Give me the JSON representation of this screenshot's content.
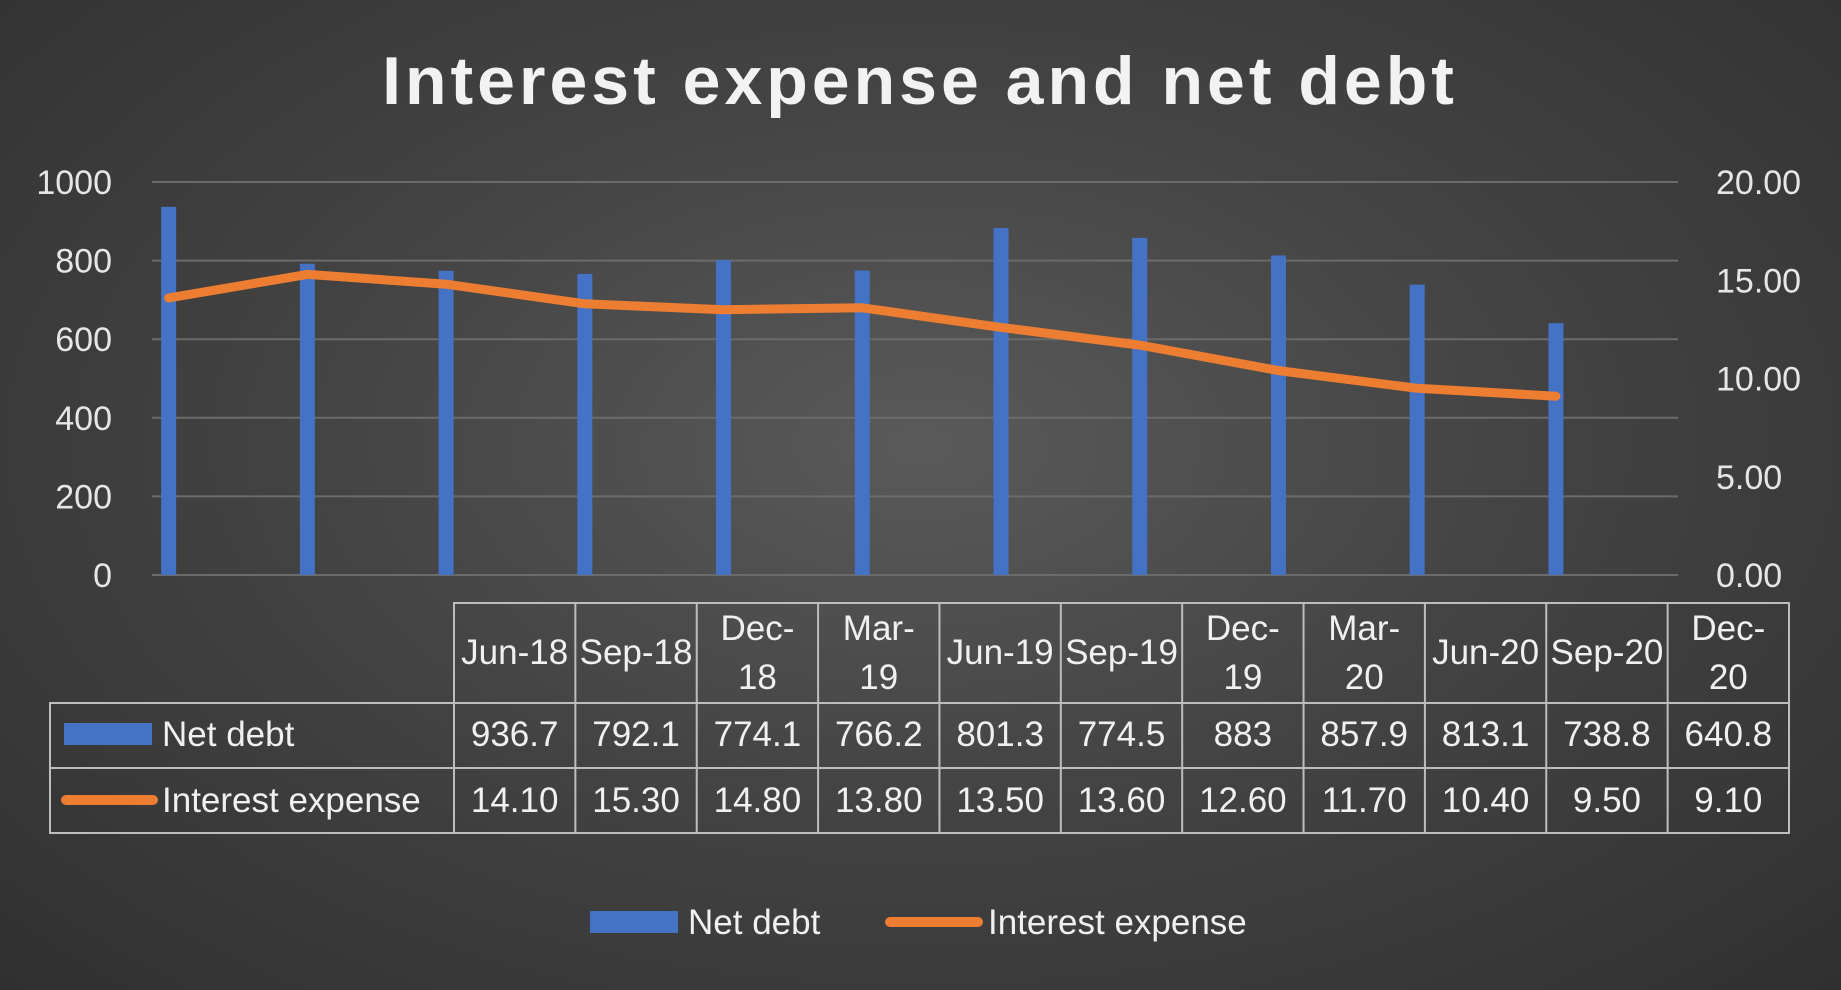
{
  "chart_data": {
    "type": "bar",
    "title": "Interest expense and net debt",
    "categories": [
      "Jun-18",
      "Sep-18",
      "Dec-18",
      "Mar-19",
      "Jun-19",
      "Sep-19",
      "Dec-19",
      "Mar-20",
      "Jun-20",
      "Sep-20",
      "Dec-20"
    ],
    "category_display": [
      [
        "Jun-18"
      ],
      [
        "Sep-18"
      ],
      [
        "Dec-",
        "18"
      ],
      [
        "Mar-",
        "19"
      ],
      [
        "Jun-19"
      ],
      [
        "Sep-19"
      ],
      [
        "Dec-",
        "19"
      ],
      [
        "Mar-",
        "20"
      ],
      [
        "Jun-20"
      ],
      [
        "Sep-20"
      ],
      [
        "Dec-",
        "20"
      ]
    ],
    "series": [
      {
        "name": "Net debt",
        "type": "bar",
        "axis": "left",
        "color": "#4472c4",
        "values": [
          936.7,
          792.1,
          774.1,
          766.2,
          801.3,
          774.5,
          883,
          857.9,
          813.1,
          738.8,
          640.8
        ],
        "value_labels": [
          "936.7",
          "792.1",
          "774.1",
          "766.2",
          "801.3",
          "774.5",
          "883",
          "857.9",
          "813.1",
          "738.8",
          "640.8"
        ]
      },
      {
        "name": "Interest expense",
        "type": "line",
        "axis": "right",
        "color": "#ed7d31",
        "values": [
          14.1,
          15.3,
          14.8,
          13.8,
          13.5,
          13.6,
          12.6,
          11.7,
          10.4,
          9.5,
          9.1
        ],
        "value_labels": [
          "14.10",
          "15.30",
          "14.80",
          "13.80",
          "13.50",
          "13.60",
          "12.60",
          "11.70",
          "10.40",
          "9.50",
          "9.10"
        ]
      }
    ],
    "y_left": {
      "min": 0,
      "max": 1000,
      "ticks": [
        "0",
        "200",
        "400",
        "600",
        "800",
        "1000"
      ]
    },
    "y_right": {
      "min": 0,
      "max": 20,
      "ticks": [
        "0.00",
        "5.00",
        "10.00",
        "15.00",
        "20.00"
      ]
    },
    "grid": true,
    "data_table": true,
    "legend": {
      "position": "bottom",
      "entries": [
        "Net debt",
        "Interest expense"
      ]
    }
  }
}
